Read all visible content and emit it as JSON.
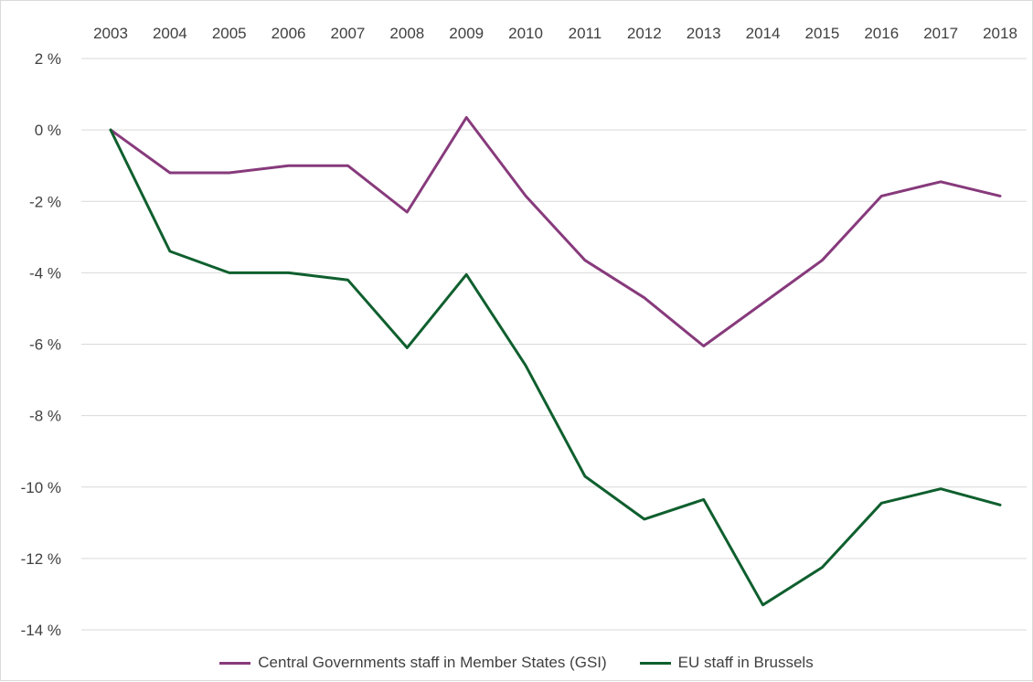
{
  "chart_data": {
    "type": "line",
    "title": "",
    "xlabel": "",
    "ylabel": "",
    "x": [
      "2003",
      "2004",
      "2005",
      "2006",
      "2007",
      "2008",
      "2009",
      "2010",
      "2011",
      "2012",
      "2013",
      "2014",
      "2015",
      "2016",
      "2017",
      "2018"
    ],
    "y_ticks": [
      2,
      0,
      -2,
      -4,
      -6,
      -8,
      -10,
      -12,
      -14
    ],
    "y_tick_labels": [
      "2 %",
      "0 %",
      "-2 %",
      "-4 %",
      "-6 %",
      "-8 %",
      "-10 %",
      "-12 %",
      "-14 %"
    ],
    "ylim": [
      -14,
      2
    ],
    "y_unit": "%",
    "grid": "horizontal",
    "x_axis_position": "top",
    "legend_position": "bottom",
    "series": [
      {
        "name": "Central Governments staff in Member States (GSI)",
        "color": "#873a7c",
        "values": [
          0.0,
          -1.2,
          -1.2,
          -1.0,
          -1.0,
          -2.3,
          0.35,
          -1.85,
          -3.65,
          -4.7,
          -6.05,
          -4.85,
          -3.65,
          -1.85,
          -1.45,
          -1.85
        ]
      },
      {
        "name": "EU staff in Brussels",
        "color": "#0f5f2e",
        "values": [
          0.0,
          -3.4,
          -4.0,
          -4.0,
          -4.2,
          -6.1,
          -4.05,
          -6.6,
          -9.7,
          -10.9,
          -10.35,
          -13.3,
          -12.25,
          -10.45,
          -10.05,
          -10.5
        ]
      }
    ]
  }
}
